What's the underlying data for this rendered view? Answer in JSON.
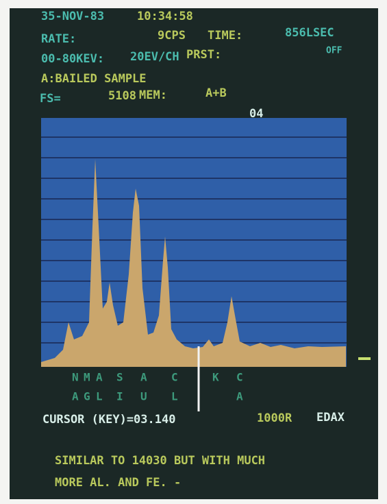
{
  "header": {
    "date": "35-NOV-83",
    "time": "10:34:58",
    "rate_label": "RATE:",
    "rate": "9CPS",
    "time_label": "TIME:",
    "live_time": "856LSEC",
    "range": "00-80KEV:",
    "resolution": "20EV/CH",
    "preset_label": "PRST:",
    "preset": "OFF",
    "sample": "A:BAILED SAMPLE",
    "fs_label": "FS=",
    "fs": "5108",
    "mem_label": "MEM:",
    "mem": "A+B"
  },
  "marker": "04",
  "elements": [
    [
      "N",
      "A"
    ],
    [
      "M",
      "G"
    ],
    [
      "A",
      "L"
    ],
    [
      "S",
      "I"
    ],
    [
      "A",
      "U"
    ],
    [
      "C",
      "L"
    ],
    [
      "K",
      null
    ],
    [
      "C",
      "A"
    ]
  ],
  "cursor": {
    "label": "CURSOR (KEY)=03.140",
    "scale": "1000R",
    "brand": "EDAX"
  },
  "notes": [
    "SIMILAR TO 14030 BUT WITH MUCH",
    "MORE AL. AND FE. -"
  ]
}
